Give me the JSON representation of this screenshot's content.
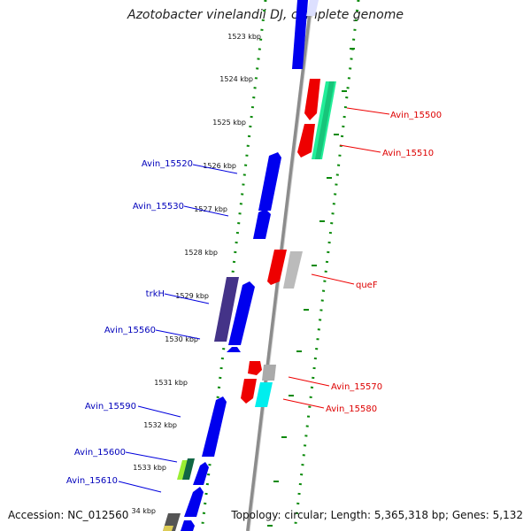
{
  "title": "Azotobacter vinelandii DJ, complete genome",
  "accession": "Accession: NC_012560",
  "topology": "Topology: circular; Length: 5,365,318 bp; Genes: 5,132",
  "ticks": [
    "1523 kbp",
    "1524 kbp",
    "1525 kbp",
    "1526 kbp",
    "1527 kbp",
    "1528 kbp",
    "1529 kbp",
    "1530 kbp",
    "1531 kbp",
    "1532 kbp",
    "1533 kbp",
    "34 kbp"
  ],
  "genes": [
    {
      "name": "Avin_15500",
      "strand": "plus",
      "color": "#dd0000"
    },
    {
      "name": "Avin_15510",
      "strand": "plus",
      "color": "#dd0000"
    },
    {
      "name": "Avin_15520",
      "strand": "minus",
      "color": "#0000bb"
    },
    {
      "name": "Avin_15530",
      "strand": "minus",
      "color": "#0000bb"
    },
    {
      "name": "queF",
      "strand": "plus",
      "color": "#dd0000"
    },
    {
      "name": "trkH",
      "strand": "minus",
      "color": "#0000bb"
    },
    {
      "name": "Avin_15560",
      "strand": "minus",
      "color": "#0000bb"
    },
    {
      "name": "Avin_15570",
      "strand": "plus",
      "color": "#dd0000"
    },
    {
      "name": "Avin_15580",
      "strand": "plus",
      "color": "#dd0000"
    },
    {
      "name": "Avin_15590",
      "strand": "minus",
      "color": "#0000bb"
    },
    {
      "name": "Avin_15600",
      "strand": "minus",
      "color": "#0000bb"
    },
    {
      "name": "Avin_15610",
      "strand": "minus",
      "color": "#0000bb"
    }
  ],
  "colors": {
    "backbone": "#8c8c8c",
    "dotted_track": "#0a8a0a",
    "plus_label": "#dd0000",
    "minus_label": "#0000bb"
  }
}
